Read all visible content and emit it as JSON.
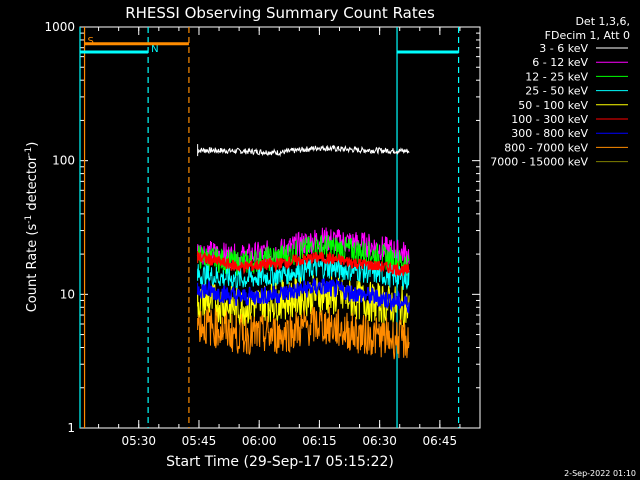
{
  "chart_data": {
    "type": "line",
    "title": "RHESSI Observing Summary Count Rates",
    "ylabel_parts": [
      "Count Rate (s",
      "-1",
      " detector",
      "-1",
      ")"
    ],
    "xlabel": "Start Time (29-Sep-17 05:15:22)",
    "date_stamp": "2-Sep-2022 01:10",
    "yscale": "log",
    "ylim": [
      1,
      1000
    ],
    "y_ticks": [
      {
        "value": 1,
        "label": "1"
      },
      {
        "value": 10,
        "label": "10"
      },
      {
        "value": 100,
        "label": "100"
      },
      {
        "value": 1000,
        "label": "1000"
      }
    ],
    "xlim": [
      "05:15:22",
      "06:55:00"
    ],
    "x_ticks": [
      "05:30",
      "05:45",
      "06:00",
      "06:15",
      "06:30",
      "06:45"
    ],
    "legend": {
      "position": "top-right",
      "header": [
        "Det 1,3,6,",
        "FDecim 1, Att 0"
      ],
      "entries": [
        {
          "label": "3 - 6 keV",
          "color": "#ffffff"
        },
        {
          "label": "6 - 12 keV",
          "color": "#ff00ff"
        },
        {
          "label": "12 - 25 keV",
          "color": "#00ff00"
        },
        {
          "label": "25 - 50 keV",
          "color": "#00ffff"
        },
        {
          "label": "50 - 100 keV",
          "color": "#ffff00"
        },
        {
          "label": "100 - 300 keV",
          "color": "#ff0000"
        },
        {
          "label": "300 - 800 keV",
          "color": "#0000ff"
        },
        {
          "label": "800 - 7000 keV",
          "color": "#ff8c00"
        },
        {
          "label": "7000 - 15000 keV",
          "color": "#808000"
        }
      ]
    },
    "data_interval": {
      "start": "05:44:40",
      "end": "06:37:20"
    },
    "series": [
      {
        "name": "3 - 6 keV",
        "color": "#ffffff",
        "x": [
          "05:45",
          "05:55",
          "06:05",
          "06:15",
          "06:25",
          "06:37"
        ],
        "values": [
          120,
          118,
          115,
          125,
          120,
          118
        ]
      },
      {
        "name": "6 - 12 keV",
        "color": "#ff00ff",
        "x": [
          "05:45",
          "05:55",
          "06:05",
          "06:15",
          "06:25",
          "06:37"
        ],
        "values": [
          21,
          19,
          21,
          26,
          24,
          20
        ]
      },
      {
        "name": "12 - 25 keV",
        "color": "#00ff00",
        "x": [
          "05:45",
          "05:55",
          "06:05",
          "06:15",
          "06:25",
          "06:37"
        ],
        "values": [
          19,
          17,
          19,
          23,
          21,
          17
        ]
      },
      {
        "name": "25 - 50 keV",
        "color": "#00ffff",
        "x": [
          "05:45",
          "05:55",
          "06:05",
          "06:15",
          "06:25",
          "06:37"
        ],
        "values": [
          14,
          13,
          14,
          16,
          15,
          13
        ]
      },
      {
        "name": "50 - 100 keV",
        "color": "#ffff00",
        "x": [
          "05:45",
          "05:55",
          "06:05",
          "06:15",
          "06:25",
          "06:37"
        ],
        "values": [
          9,
          8,
          9,
          10,
          9,
          8
        ]
      },
      {
        "name": "100 - 300 keV",
        "color": "#ff0000",
        "x": [
          "05:45",
          "05:55",
          "06:05",
          "06:15",
          "06:25",
          "06:37"
        ],
        "values": [
          19,
          16,
          17,
          19,
          17,
          15
        ]
      },
      {
        "name": "300 - 800 keV",
        "color": "#0000ff",
        "x": [
          "05:45",
          "05:55",
          "06:05",
          "06:15",
          "06:25",
          "06:37"
        ],
        "values": [
          11,
          9.5,
          10,
          11.5,
          10,
          8.5
        ]
      },
      {
        "name": "800 - 7000 keV",
        "color": "#ff8c00",
        "x": [
          "05:45",
          "05:55",
          "06:05",
          "06:15",
          "06:25",
          "06:37"
        ],
        "values": [
          6,
          5,
          5,
          6,
          5,
          4.5
        ]
      }
    ],
    "markers": [
      {
        "label": "S",
        "color": "#ff8c00",
        "time": "05:16:30",
        "style": "solid"
      },
      {
        "label": "",
        "color": "#ff8c00",
        "time": "05:42:30",
        "style": "dashed"
      },
      {
        "label": "",
        "color": "#00ffff",
        "time": "05:15:22",
        "style": "solid"
      },
      {
        "label": "N",
        "color": "#00ffff",
        "time": "05:32:20",
        "style": "dashed"
      },
      {
        "label": "",
        "color": "#00ffff",
        "time": "06:34:20",
        "style": "solid"
      },
      {
        "label": "",
        "color": "#00ffff",
        "time": "06:49:40",
        "style": "dashed"
      }
    ],
    "flag_bars": [
      {
        "color": "#ff8c00",
        "start": "05:16:30",
        "end": "05:42:30",
        "y": 750
      },
      {
        "color": "#00ffff",
        "start": "05:15:22",
        "end": "05:32:20",
        "y": 650
      },
      {
        "color": "#00ffff",
        "start": "06:34:20",
        "end": "06:49:40",
        "y": 650
      }
    ]
  }
}
